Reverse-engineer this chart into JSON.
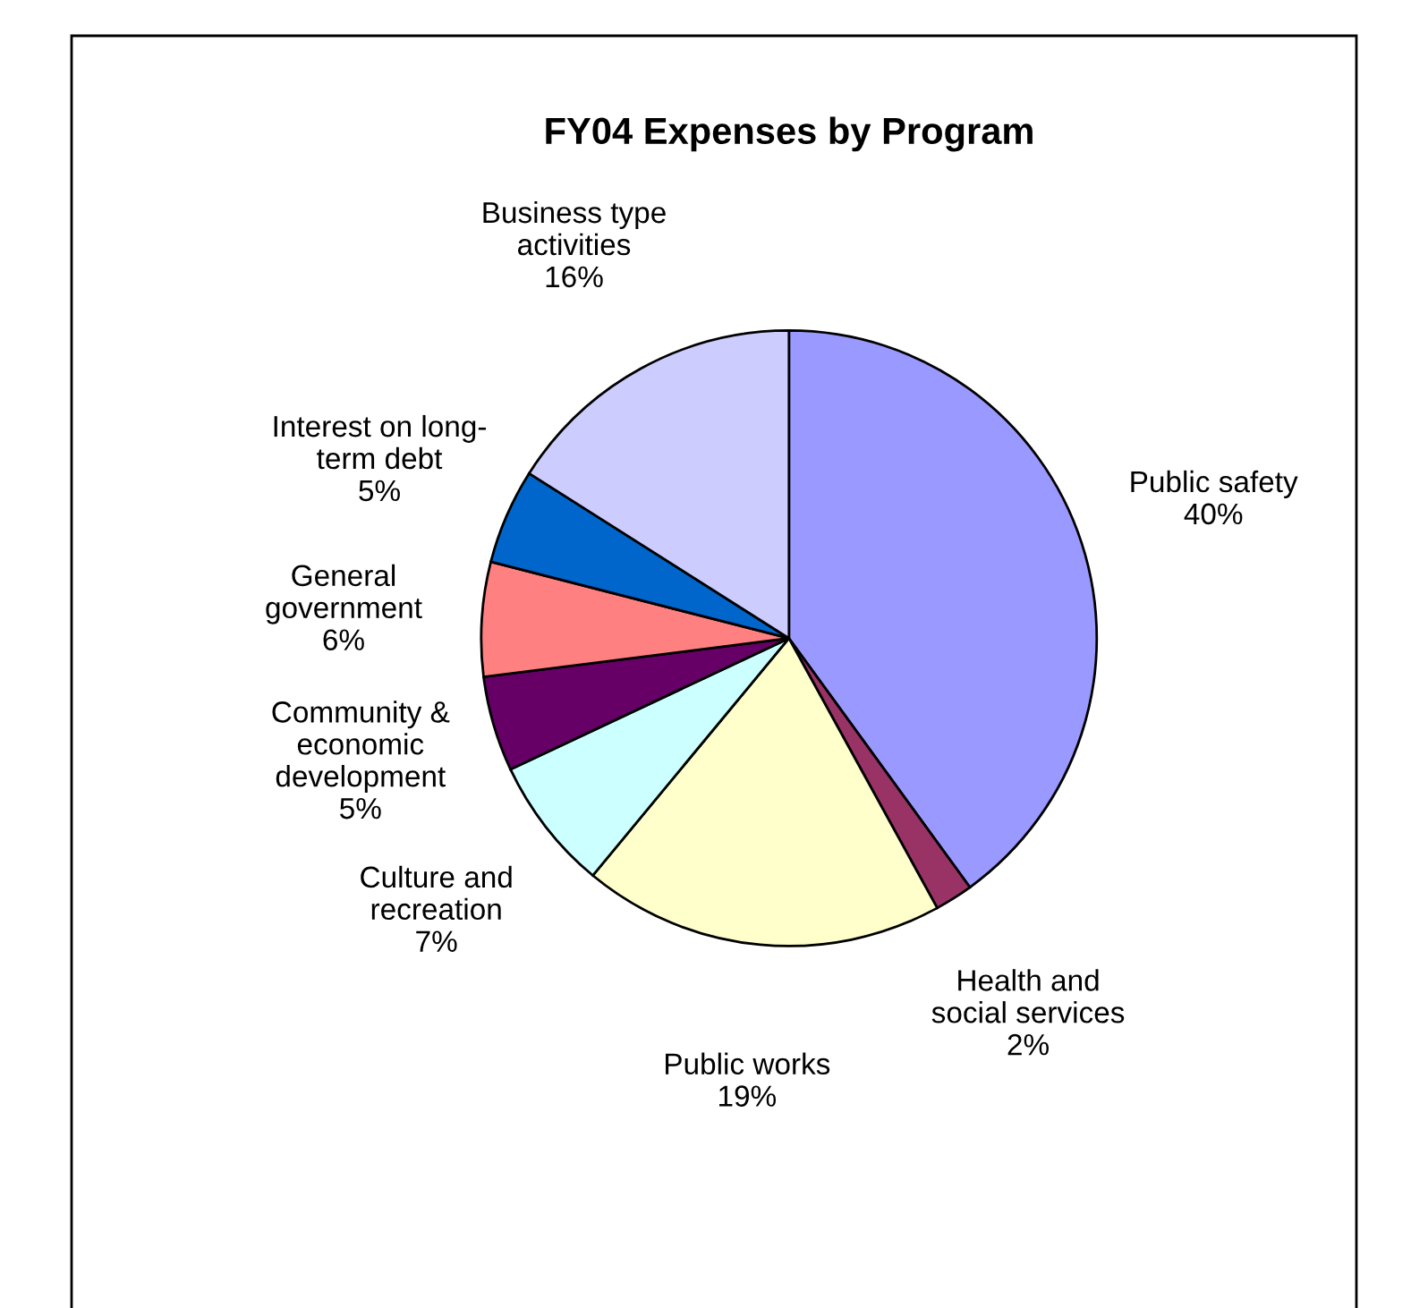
{
  "chart_data": {
    "type": "pie",
    "title": "FY04 Expenses by Program",
    "categories": [
      "Public safety",
      "Health and\nsocial services",
      "Public works",
      "Culture and\nrecreation",
      "Community &\neconomic\ndevelopment",
      "General\ngovernment",
      "Interest on long-\nterm debt",
      "Business type\nactivities"
    ],
    "values": [
      40,
      2,
      19,
      7,
      5,
      6,
      5,
      16
    ],
    "value_labels": [
      "40%",
      "2%",
      "19%",
      "7%",
      "5%",
      "6%",
      "5%",
      "16%"
    ],
    "colors": [
      "#9999ff",
      "#993366",
      "#ffffcc",
      "#ccffff",
      "#660066",
      "#ff8080",
      "#0066cc",
      "#ccccff"
    ],
    "legend": false
  }
}
